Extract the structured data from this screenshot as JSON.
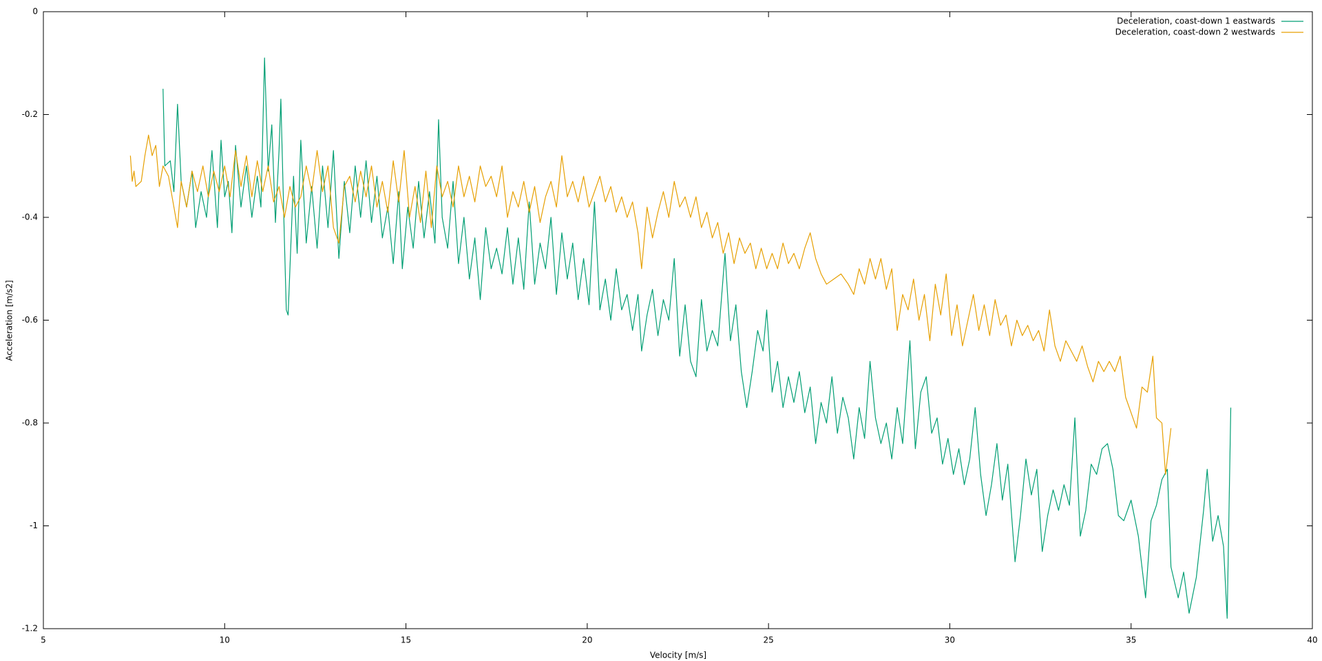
{
  "chart_data": {
    "type": "line",
    "xlabel": "Velocity [m/s]",
    "ylabel": "Acceleration [m/s2]",
    "xlim": [
      5,
      40
    ],
    "xticks": [
      5,
      10,
      15,
      20,
      25,
      30,
      35,
      40
    ],
    "ylim": [
      -1.2,
      0
    ],
    "yticks": [
      0,
      -0.2,
      -0.4,
      -0.6,
      -0.8,
      -1,
      -1.2
    ],
    "legend": "top right",
    "series": [
      {
        "name": "Deceleration, coast-down 1 eastwards",
        "color": "#009e73",
        "x": [
          8.3,
          8.35,
          8.5,
          8.6,
          8.7,
          8.8,
          8.95,
          9.1,
          9.2,
          9.35,
          9.5,
          9.65,
          9.8,
          9.9,
          10.0,
          10.1,
          10.2,
          10.3,
          10.45,
          10.6,
          10.75,
          10.9,
          11.0,
          11.1,
          11.2,
          11.3,
          11.4,
          11.5,
          11.55,
          11.65,
          11.7,
          11.75,
          11.9,
          12.0,
          12.1,
          12.25,
          12.4,
          12.55,
          12.7,
          12.85,
          13.0,
          13.15,
          13.3,
          13.45,
          13.6,
          13.75,
          13.9,
          14.05,
          14.2,
          14.35,
          14.5,
          14.65,
          14.8,
          14.9,
          15.05,
          15.2,
          15.35,
          15.5,
          15.65,
          15.8,
          15.9,
          16.0,
          16.15,
          16.3,
          16.45,
          16.6,
          16.75,
          16.9,
          17.05,
          17.2,
          17.35,
          17.5,
          17.65,
          17.8,
          17.95,
          18.1,
          18.25,
          18.4,
          18.55,
          18.7,
          18.85,
          19.0,
          19.15,
          19.3,
          19.45,
          19.6,
          19.75,
          19.9,
          20.05,
          20.2,
          20.35,
          20.5,
          20.65,
          20.8,
          20.95,
          21.1,
          21.25,
          21.4,
          21.5,
          21.65,
          21.8,
          21.95,
          22.1,
          22.25,
          22.4,
          22.55,
          22.7,
          22.85,
          23.0,
          23.15,
          23.3,
          23.45,
          23.6,
          23.8,
          23.95,
          24.1,
          24.25,
          24.4,
          24.55,
          24.7,
          24.85,
          24.95,
          25.1,
          25.25,
          25.4,
          25.55,
          25.7,
          25.85,
          26.0,
          26.15,
          26.3,
          26.45,
          26.6,
          26.75,
          26.9,
          27.05,
          27.2,
          27.35,
          27.5,
          27.65,
          27.8,
          27.95,
          28.1,
          28.25,
          28.4,
          28.55,
          28.7,
          28.9,
          29.05,
          29.2,
          29.35,
          29.5,
          29.65,
          29.8,
          29.95,
          30.1,
          30.25,
          30.4,
          30.55,
          30.7,
          30.85,
          31.0,
          31.15,
          31.3,
          31.45,
          31.6,
          31.8,
          31.95,
          32.1,
          32.25,
          32.4,
          32.55,
          32.7,
          32.85,
          33.0,
          33.15,
          33.3,
          33.45,
          33.6,
          33.75,
          33.9,
          34.05,
          34.2,
          34.35,
          34.5,
          34.65,
          34.8,
          35.0,
          35.2,
          35.4,
          35.55,
          35.7,
          35.85,
          36.0,
          36.1,
          36.3,
          36.45,
          36.6,
          36.8,
          37.0,
          37.1,
          37.25,
          37.4,
          37.55,
          37.65,
          37.75
        ],
        "values": [
          -0.15,
          -0.3,
          -0.29,
          -0.35,
          -0.18,
          -0.33,
          -0.38,
          -0.31,
          -0.42,
          -0.35,
          -0.4,
          -0.27,
          -0.42,
          -0.25,
          -0.36,
          -0.33,
          -0.43,
          -0.26,
          -0.38,
          -0.3,
          -0.4,
          -0.32,
          -0.38,
          -0.09,
          -0.31,
          -0.22,
          -0.41,
          -0.27,
          -0.17,
          -0.45,
          -0.58,
          -0.59,
          -0.32,
          -0.47,
          -0.25,
          -0.45,
          -0.34,
          -0.46,
          -0.3,
          -0.42,
          -0.27,
          -0.48,
          -0.33,
          -0.43,
          -0.3,
          -0.4,
          -0.29,
          -0.41,
          -0.32,
          -0.44,
          -0.38,
          -0.49,
          -0.35,
          -0.5,
          -0.38,
          -0.46,
          -0.33,
          -0.44,
          -0.35,
          -0.45,
          -0.21,
          -0.4,
          -0.46,
          -0.33,
          -0.49,
          -0.4,
          -0.52,
          -0.44,
          -0.56,
          -0.42,
          -0.5,
          -0.46,
          -0.51,
          -0.42,
          -0.53,
          -0.44,
          -0.54,
          -0.37,
          -0.53,
          -0.45,
          -0.5,
          -0.4,
          -0.55,
          -0.43,
          -0.52,
          -0.45,
          -0.56,
          -0.48,
          -0.57,
          -0.37,
          -0.58,
          -0.52,
          -0.6,
          -0.5,
          -0.58,
          -0.55,
          -0.62,
          -0.55,
          -0.66,
          -0.59,
          -0.54,
          -0.63,
          -0.56,
          -0.6,
          -0.48,
          -0.67,
          -0.57,
          -0.68,
          -0.71,
          -0.56,
          -0.66,
          -0.62,
          -0.65,
          -0.47,
          -0.64,
          -0.57,
          -0.7,
          -0.77,
          -0.7,
          -0.62,
          -0.66,
          -0.58,
          -0.74,
          -0.68,
          -0.77,
          -0.71,
          -0.76,
          -0.7,
          -0.78,
          -0.73,
          -0.84,
          -0.76,
          -0.8,
          -0.71,
          -0.82,
          -0.75,
          -0.79,
          -0.87,
          -0.77,
          -0.83,
          -0.68,
          -0.79,
          -0.84,
          -0.8,
          -0.87,
          -0.77,
          -0.84,
          -0.64,
          -0.85,
          -0.74,
          -0.71,
          -0.82,
          -0.79,
          -0.88,
          -0.83,
          -0.9,
          -0.85,
          -0.92,
          -0.87,
          -0.77,
          -0.9,
          -0.98,
          -0.92,
          -0.84,
          -0.95,
          -0.88,
          -1.07,
          -0.98,
          -0.87,
          -0.94,
          -0.89,
          -1.05,
          -0.98,
          -0.93,
          -0.97,
          -0.92,
          -0.96,
          -0.79,
          -1.02,
          -0.97,
          -0.88,
          -0.9,
          -0.85,
          -0.84,
          -0.89,
          -0.98,
          -0.99,
          -0.95,
          -1.02,
          -1.14,
          -0.99,
          -0.96,
          -0.91,
          -0.89,
          -1.08,
          -1.14,
          -1.09,
          -1.17,
          -1.1,
          -0.97,
          -0.89,
          -1.03,
          -0.98,
          -1.04,
          -1.18,
          -0.77
        ]
      },
      {
        "name": "Deceleration, coast-down 2 westwards",
        "color": "#e69f00",
        "x": [
          7.4,
          7.45,
          7.5,
          7.55,
          7.7,
          7.8,
          7.9,
          8.0,
          8.1,
          8.2,
          8.3,
          8.45,
          8.6,
          8.7,
          8.8,
          8.95,
          9.1,
          9.25,
          9.4,
          9.55,
          9.7,
          9.85,
          10.0,
          10.15,
          10.3,
          10.45,
          10.6,
          10.75,
          10.9,
          11.05,
          11.2,
          11.35,
          11.5,
          11.65,
          11.8,
          11.95,
          12.1,
          12.25,
          12.4,
          12.55,
          12.7,
          12.85,
          13.0,
          13.15,
          13.3,
          13.45,
          13.6,
          13.75,
          13.9,
          14.05,
          14.2,
          14.35,
          14.5,
          14.65,
          14.8,
          14.95,
          15.1,
          15.25,
          15.4,
          15.55,
          15.7,
          15.85,
          16.0,
          16.15,
          16.3,
          16.45,
          16.6,
          16.75,
          16.9,
          17.05,
          17.2,
          17.35,
          17.5,
          17.65,
          17.8,
          17.95,
          18.1,
          18.25,
          18.4,
          18.55,
          18.7,
          18.85,
          19.0,
          19.15,
          19.3,
          19.45,
          19.6,
          19.75,
          19.9,
          20.05,
          20.2,
          20.35,
          20.5,
          20.65,
          20.8,
          20.95,
          21.1,
          21.25,
          21.4,
          21.5,
          21.65,
          21.8,
          21.95,
          22.1,
          22.25,
          22.4,
          22.55,
          22.7,
          22.85,
          23.0,
          23.15,
          23.3,
          23.45,
          23.6,
          23.75,
          23.9,
          24.05,
          24.2,
          24.35,
          24.5,
          24.65,
          24.8,
          24.95,
          25.1,
          25.25,
          25.4,
          25.55,
          25.7,
          25.85,
          26.0,
          26.15,
          26.3,
          26.45,
          26.6,
          26.8,
          27.0,
          27.2,
          27.35,
          27.5,
          27.65,
          27.8,
          27.95,
          28.1,
          28.25,
          28.4,
          28.55,
          28.7,
          28.85,
          29.0,
          29.15,
          29.3,
          29.45,
          29.6,
          29.75,
          29.9,
          30.05,
          30.2,
          30.35,
          30.5,
          30.65,
          30.8,
          30.95,
          31.1,
          31.25,
          31.4,
          31.55,
          31.7,
          31.85,
          32.0,
          32.15,
          32.3,
          32.45,
          32.6,
          32.75,
          32.9,
          33.05,
          33.2,
          33.35,
          33.5,
          33.65,
          33.8,
          33.95,
          34.1,
          34.25,
          34.4,
          34.55,
          34.7,
          34.85,
          35.0,
          35.15,
          35.3,
          35.45,
          35.6,
          35.7,
          35.85,
          35.95,
          36.1
        ],
        "values": [
          -0.28,
          -0.33,
          -0.31,
          -0.34,
          -0.33,
          -0.28,
          -0.24,
          -0.28,
          -0.26,
          -0.34,
          -0.3,
          -0.32,
          -0.38,
          -0.42,
          -0.33,
          -0.38,
          -0.31,
          -0.35,
          -0.3,
          -0.36,
          -0.31,
          -0.35,
          -0.3,
          -0.36,
          -0.27,
          -0.34,
          -0.28,
          -0.36,
          -0.29,
          -0.35,
          -0.3,
          -0.37,
          -0.34,
          -0.4,
          -0.34,
          -0.38,
          -0.36,
          -0.3,
          -0.35,
          -0.27,
          -0.35,
          -0.3,
          -0.42,
          -0.45,
          -0.34,
          -0.32,
          -0.37,
          -0.31,
          -0.36,
          -0.3,
          -0.38,
          -0.33,
          -0.39,
          -0.29,
          -0.37,
          -0.27,
          -0.4,
          -0.34,
          -0.41,
          -0.31,
          -0.42,
          -0.3,
          -0.36,
          -0.33,
          -0.38,
          -0.3,
          -0.36,
          -0.32,
          -0.37,
          -0.3,
          -0.34,
          -0.32,
          -0.36,
          -0.3,
          -0.4,
          -0.35,
          -0.38,
          -0.33,
          -0.39,
          -0.34,
          -0.41,
          -0.36,
          -0.33,
          -0.38,
          -0.28,
          -0.36,
          -0.33,
          -0.37,
          -0.32,
          -0.38,
          -0.35,
          -0.32,
          -0.37,
          -0.34,
          -0.39,
          -0.36,
          -0.4,
          -0.37,
          -0.43,
          -0.5,
          -0.38,
          -0.44,
          -0.39,
          -0.35,
          -0.4,
          -0.33,
          -0.38,
          -0.36,
          -0.4,
          -0.36,
          -0.42,
          -0.39,
          -0.44,
          -0.41,
          -0.47,
          -0.43,
          -0.49,
          -0.44,
          -0.47,
          -0.45,
          -0.5,
          -0.46,
          -0.5,
          -0.47,
          -0.5,
          -0.45,
          -0.49,
          -0.47,
          -0.5,
          -0.46,
          -0.43,
          -0.48,
          -0.51,
          -0.53,
          -0.52,
          -0.51,
          -0.53,
          -0.55,
          -0.5,
          -0.53,
          -0.48,
          -0.52,
          -0.48,
          -0.54,
          -0.5,
          -0.62,
          -0.55,
          -0.58,
          -0.52,
          -0.6,
          -0.55,
          -0.64,
          -0.53,
          -0.59,
          -0.51,
          -0.63,
          -0.57,
          -0.65,
          -0.6,
          -0.55,
          -0.62,
          -0.57,
          -0.63,
          -0.56,
          -0.61,
          -0.59,
          -0.65,
          -0.6,
          -0.63,
          -0.61,
          -0.64,
          -0.62,
          -0.66,
          -0.58,
          -0.65,
          -0.68,
          -0.64,
          -0.66,
          -0.68,
          -0.65,
          -0.69,
          -0.72,
          -0.68,
          -0.7,
          -0.68,
          -0.7,
          -0.67,
          -0.75,
          -0.78,
          -0.81,
          -0.73,
          -0.74,
          -0.67,
          -0.79,
          -0.8,
          -0.9,
          -0.81
        ]
      }
    ]
  }
}
